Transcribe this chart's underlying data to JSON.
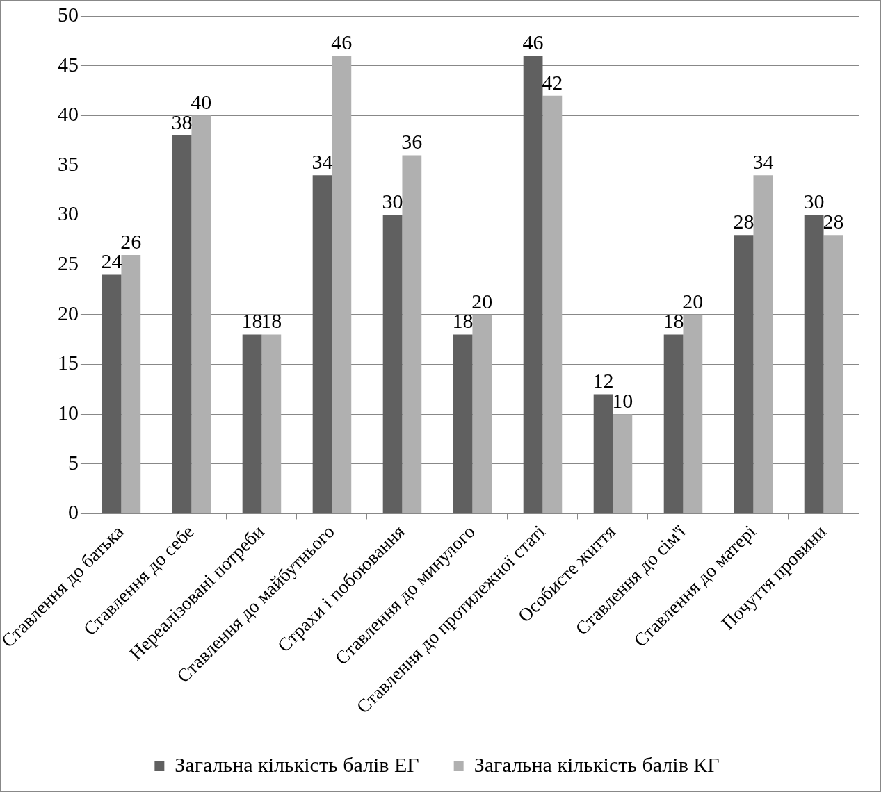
{
  "chart_data": {
    "type": "bar",
    "categories": [
      "Ставлення до батька",
      "Ставлення до себе",
      "Нереалізовані потреби",
      "Ставлення до майбутнього",
      "Страхи і побоювання",
      "Ставлення до минулого",
      "Ставлення до протилежної статі",
      "Особисте життя",
      "Ставлення до сім'ї",
      "Ставлення до матері",
      "Почуття провини"
    ],
    "series": [
      {
        "name": "Загальна кількість балів ЕГ",
        "color": "#606060",
        "values": [
          24,
          38,
          18,
          34,
          30,
          18,
          46,
          12,
          18,
          28,
          30
        ]
      },
      {
        "name": "Загальна кількість балів КГ",
        "color": "#b0b0b0",
        "values": [
          26,
          40,
          18,
          46,
          36,
          20,
          42,
          10,
          20,
          34,
          28
        ]
      }
    ],
    "ylim": [
      0,
      50
    ],
    "yticks": [
      0,
      5,
      10,
      15,
      20,
      25,
      30,
      35,
      40,
      45,
      50
    ],
    "grid": "y",
    "legend": "bottom",
    "data_labels": true
  }
}
